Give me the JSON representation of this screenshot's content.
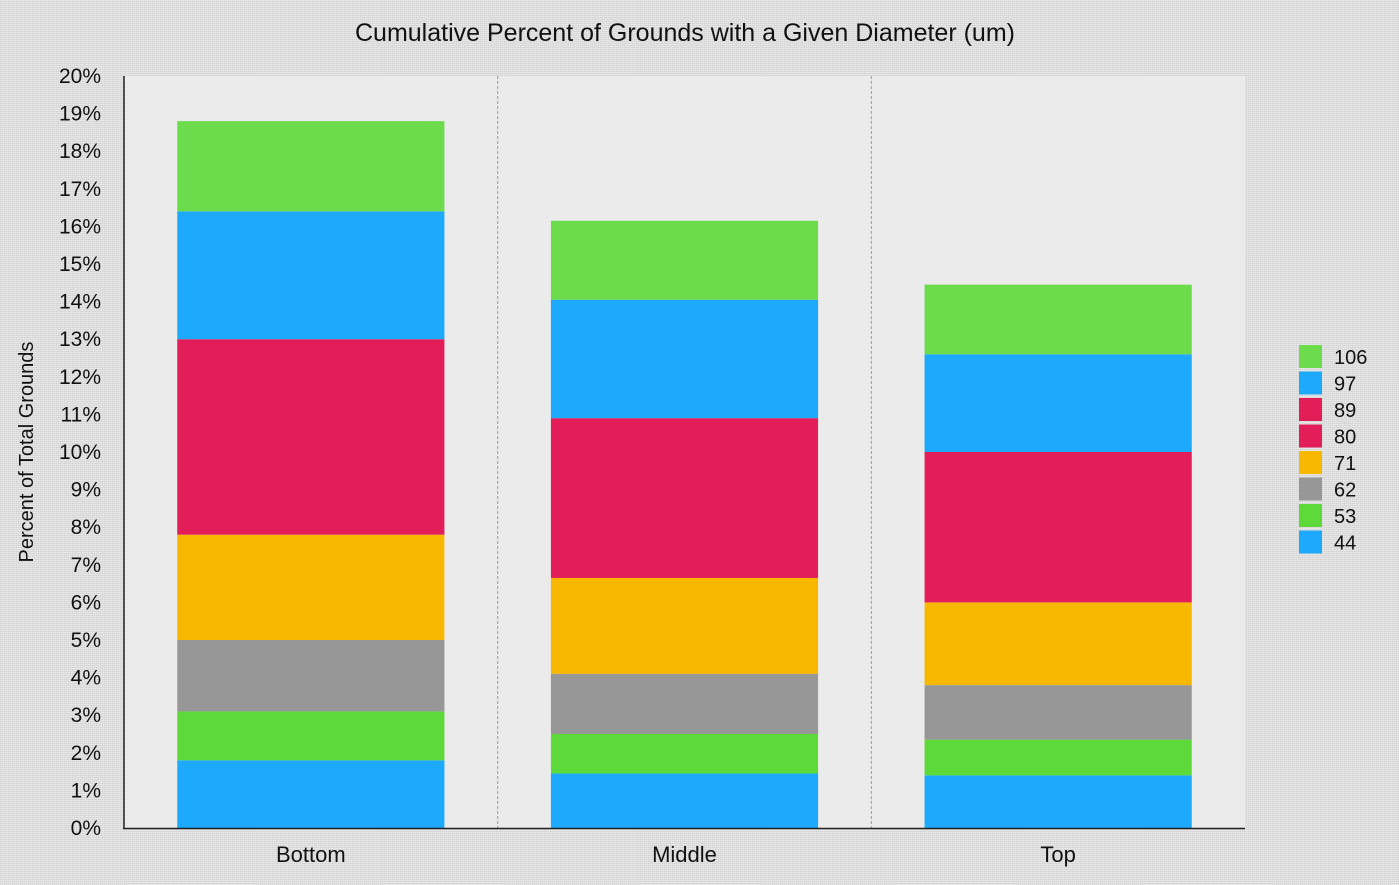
{
  "chart_data": {
    "type": "bar",
    "stacked": true,
    "title": "Cumulative Percent of Grounds with a Given Diameter (um)",
    "xlabel": "",
    "ylabel": "Percent of Total Grounds",
    "ylim": [
      0,
      20
    ],
    "yticks": [
      "0%",
      "1%",
      "2%",
      "3%",
      "4%",
      "5%",
      "6%",
      "7%",
      "8%",
      "9%",
      "10%",
      "11%",
      "12%",
      "13%",
      "14%",
      "15%",
      "16%",
      "17%",
      "18%",
      "19%",
      "20%"
    ],
    "categories": [
      "Bottom",
      "Middle",
      "Top"
    ],
    "grid": false,
    "legend_position": "right",
    "series": [
      {
        "name": "44",
        "color": "#1eaafc",
        "values": [
          1.8,
          1.45,
          1.4
        ]
      },
      {
        "name": "53",
        "color": "#5dd93a",
        "values": [
          1.3,
          1.05,
          0.95
        ]
      },
      {
        "name": "62",
        "color": "#979797",
        "values": [
          1.9,
          1.6,
          1.45
        ]
      },
      {
        "name": "71",
        "color": "#f9b800",
        "values": [
          2.8,
          2.55,
          2.2
        ]
      },
      {
        "name": "80",
        "color": "#e21d57",
        "values": [
          5.2,
          4.25,
          4.0
        ]
      },
      {
        "name": "89",
        "color": "#e21d57",
        "values": [
          0.0,
          0.0,
          0.0
        ]
      },
      {
        "name": "97",
        "color": "#1eaafc",
        "values": [
          3.4,
          3.15,
          2.6
        ]
      },
      {
        "name": "106",
        "color": "#6cdc4c",
        "values": [
          2.4,
          2.1,
          1.85
        ]
      }
    ]
  }
}
